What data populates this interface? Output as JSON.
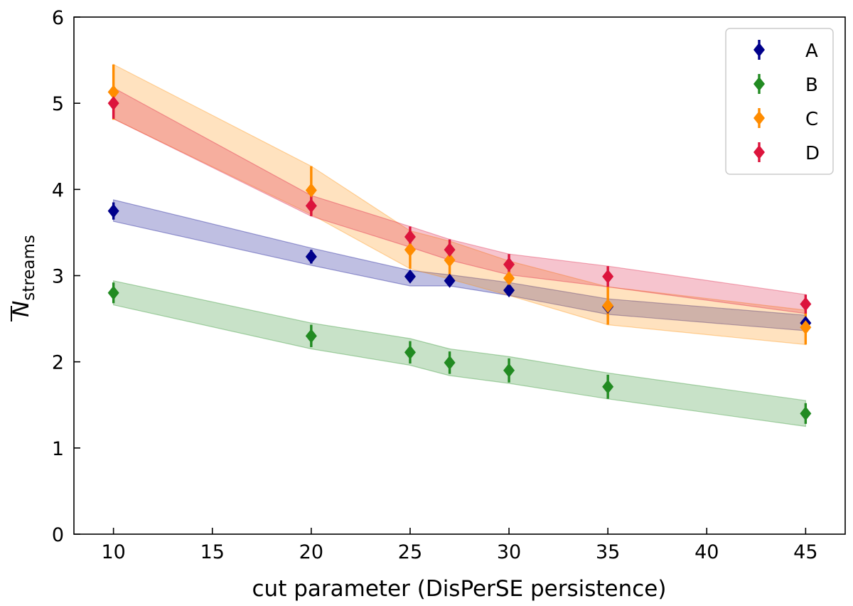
{
  "chart_data": {
    "type": "line",
    "xlabel": "cut parameter (DisPerSE persistence)",
    "ylabel": {
      "main": "N",
      "subscript": "streams",
      "overline": true
    },
    "xlim": [
      8,
      47
    ],
    "ylim": [
      0,
      6
    ],
    "xticks": [
      10,
      15,
      20,
      25,
      30,
      35,
      40,
      45
    ],
    "yticks": [
      0,
      1,
      2,
      3,
      4,
      5,
      6
    ],
    "grid": false,
    "legend_position": "top-right",
    "series": [
      {
        "name": "A",
        "color": "#00008b",
        "x": [
          10,
          20,
          25,
          27,
          30,
          35,
          45
        ],
        "y": [
          3.75,
          3.22,
          2.99,
          2.94,
          2.83,
          2.64,
          2.45
        ],
        "err": [
          0.1,
          0.08,
          0.06,
          0.06,
          0.06,
          0.06,
          0.06
        ],
        "band_lower": [
          3.63,
          3.12,
          2.88,
          2.88,
          2.77,
          2.55,
          2.36
        ],
        "band_upper": [
          3.88,
          3.32,
          3.06,
          3.01,
          2.92,
          2.73,
          2.54
        ]
      },
      {
        "name": "B",
        "color": "#228b22",
        "x": [
          10,
          20,
          25,
          27,
          30,
          35,
          45
        ],
        "y": [
          2.8,
          2.3,
          2.11,
          1.99,
          1.9,
          1.71,
          1.4
        ],
        "err": [
          0.12,
          0.13,
          0.13,
          0.13,
          0.14,
          0.14,
          0.12
        ],
        "band_lower": [
          2.66,
          2.15,
          1.96,
          1.84,
          1.75,
          1.57,
          1.25
        ],
        "band_upper": [
          2.94,
          2.45,
          2.27,
          2.15,
          2.06,
          1.87,
          1.55
        ]
      },
      {
        "name": "C",
        "color": "#ff8c00",
        "x": [
          10,
          20,
          25,
          27,
          30,
          35,
          45
        ],
        "y": [
          5.13,
          3.99,
          3.3,
          3.18,
          2.97,
          2.65,
          2.4
        ],
        "err": [
          0.32,
          0.28,
          0.22,
          0.22,
          0.2,
          0.22,
          0.2
        ],
        "band_lower": [
          4.82,
          3.71,
          3.08,
          2.96,
          2.77,
          2.43,
          2.2
        ],
        "band_upper": [
          5.45,
          4.27,
          3.52,
          3.4,
          3.17,
          2.87,
          2.6
        ]
      },
      {
        "name": "D",
        "color": "#dc143c",
        "x": [
          10,
          20,
          25,
          27,
          30,
          35,
          45
        ],
        "y": [
          5.0,
          3.81,
          3.45,
          3.3,
          3.13,
          2.99,
          2.67
        ],
        "err": [
          0.18,
          0.12,
          0.12,
          0.12,
          0.12,
          0.12,
          0.11
        ],
        "band_lower": [
          4.82,
          3.69,
          3.33,
          3.18,
          3.01,
          2.87,
          2.56
        ],
        "band_upper": [
          5.18,
          3.93,
          3.57,
          3.42,
          3.25,
          3.11,
          2.78
        ]
      }
    ]
  }
}
